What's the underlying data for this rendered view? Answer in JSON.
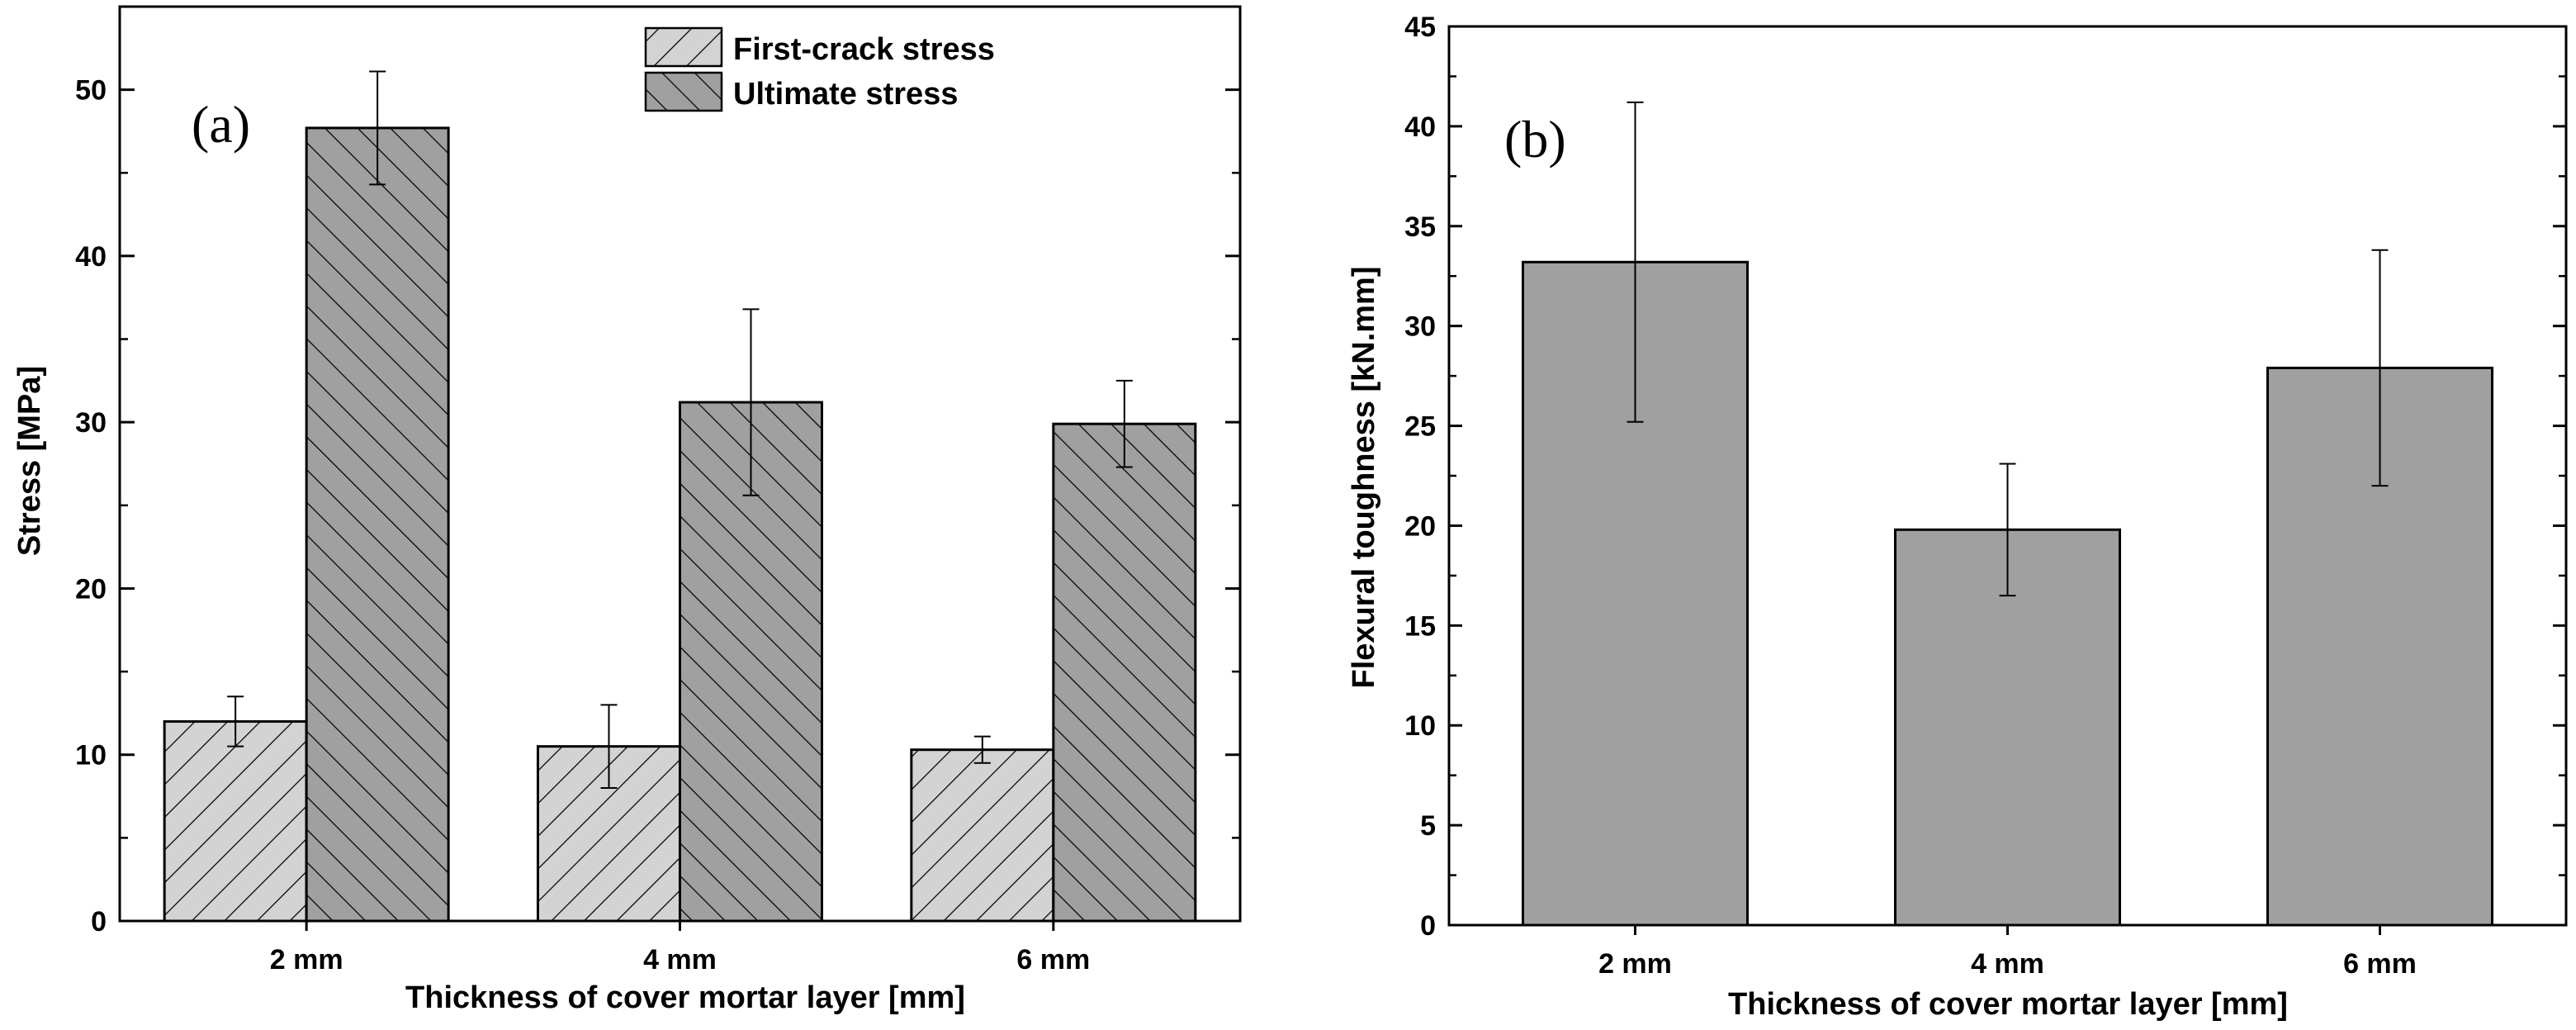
{
  "chart_data": [
    {
      "type": "bar",
      "panel_label": "(a)",
      "categories": [
        "2 mm",
        "4 mm",
        "6 mm"
      ],
      "series": [
        {
          "name": "First-crack stress",
          "values": [
            12.0,
            10.5,
            10.3
          ],
          "errors": [
            1.5,
            2.5,
            0.8
          ],
          "color": "#d3d3d3",
          "hatch": "forward"
        },
        {
          "name": "Ultimate stress",
          "values": [
            47.7,
            31.2,
            29.9
          ],
          "errors": [
            3.4,
            5.6,
            2.6
          ],
          "color": "#a0a0a0",
          "hatch": "back"
        }
      ],
      "xlabel": "Thickness of cover mortar layer [mm]",
      "ylabel": "Stress [MPa]",
      "ylim": [
        0,
        55
      ],
      "yticks": [
        0,
        10,
        20,
        30,
        40,
        50
      ],
      "legend_position": "top-right"
    },
    {
      "type": "bar",
      "panel_label": "(b)",
      "categories": [
        "2 mm",
        "4 mm",
        "6 mm"
      ],
      "series": [
        {
          "name": "Flexural toughness",
          "values": [
            33.2,
            19.8,
            27.9
          ],
          "errors": [
            8.0,
            3.3,
            5.9
          ],
          "color": "#a0a0a0"
        }
      ],
      "xlabel": "Thickness of cover mortar layer [mm]",
      "ylabel": "Flexural toughness [kN.mm]",
      "ylim": [
        0,
        45
      ],
      "yticks": [
        0,
        5,
        10,
        15,
        20,
        25,
        30,
        35,
        40,
        45
      ]
    }
  ]
}
